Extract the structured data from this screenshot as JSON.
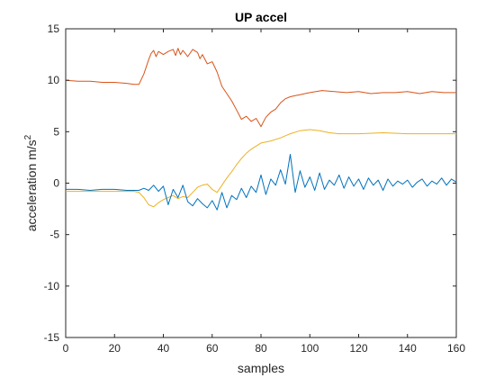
{
  "chart_data": {
    "type": "line",
    "title": "UP accel",
    "xlabel": "samples",
    "ylabel_text": "acceleration m/s",
    "ylabel_sup": "2",
    "xlim": [
      0,
      160
    ],
    "ylim": [
      -15,
      15
    ],
    "xticks": [
      0,
      20,
      40,
      60,
      80,
      100,
      120,
      140,
      160
    ],
    "yticks": [
      -15,
      -10,
      -5,
      0,
      5,
      10,
      15
    ],
    "grid": false,
    "legend": "none",
    "series": [
      {
        "color": "#D95319",
        "x": [
          0,
          5,
          10,
          15,
          20,
          25,
          28,
          30,
          32,
          34,
          35,
          36,
          37,
          38,
          40,
          42,
          44,
          45,
          46,
          47,
          48,
          50,
          52,
          54,
          55,
          56,
          58,
          60,
          62,
          64,
          66,
          68,
          70,
          72,
          74,
          76,
          78,
          80,
          82,
          84,
          86,
          88,
          90,
          92,
          94,
          96,
          98,
          100,
          105,
          110,
          115,
          120,
          125,
          130,
          135,
          140,
          145,
          150,
          155,
          160
        ],
        "y": [
          10,
          9.9,
          9.9,
          9.8,
          9.8,
          9.7,
          9.6,
          9.6,
          10.6,
          12,
          12.6,
          12.9,
          12.3,
          12.8,
          12.5,
          12.8,
          13,
          12.4,
          13.1,
          12.5,
          12.9,
          12.3,
          13,
          12.7,
          12.1,
          12.5,
          11.6,
          11.8,
          10.8,
          9.4,
          8.7,
          8,
          7.1,
          6.2,
          6.5,
          6,
          6.3,
          5.5,
          6.4,
          6.9,
          7.2,
          7.8,
          8.2,
          8.4,
          8.5,
          8.6,
          8.7,
          8.8,
          9,
          8.9,
          8.8,
          8.9,
          8.7,
          8.8,
          8.8,
          8.9,
          8.7,
          8.9,
          8.8,
          8.8
        ]
      },
      {
        "color": "#EDB120",
        "x": [
          0,
          10,
          20,
          28,
          30,
          32,
          34,
          36,
          38,
          40,
          42,
          44,
          46,
          48,
          50,
          52,
          54,
          56,
          58,
          60,
          62,
          64,
          66,
          68,
          70,
          72,
          74,
          76,
          78,
          80,
          84,
          88,
          92,
          96,
          100,
          104,
          108,
          112,
          120,
          130,
          140,
          150,
          160
        ],
        "y": [
          -0.8,
          -0.8,
          -0.8,
          -0.8,
          -0.9,
          -1.4,
          -2.1,
          -2.3,
          -1.9,
          -1.6,
          -1.4,
          -1.2,
          -1.5,
          -1.3,
          -1.4,
          -0.9,
          -0.4,
          -0.2,
          -0.1,
          -0.6,
          -0.9,
          -0.2,
          0.5,
          1.1,
          1.8,
          2.4,
          2.9,
          3.3,
          3.6,
          3.9,
          4.1,
          4.4,
          4.8,
          5.1,
          5.2,
          5.1,
          4.9,
          4.8,
          4.8,
          4.9,
          4.8,
          4.8,
          4.8
        ]
      },
      {
        "color": "#0072BD",
        "x": [
          0,
          5,
          10,
          15,
          20,
          25,
          28,
          30,
          32,
          34,
          36,
          38,
          40,
          42,
          44,
          46,
          48,
          50,
          52,
          54,
          56,
          58,
          60,
          62,
          64,
          66,
          68,
          70,
          72,
          74,
          76,
          78,
          80,
          82,
          84,
          86,
          88,
          90,
          92,
          94,
          96,
          98,
          100,
          102,
          104,
          106,
          108,
          110,
          112,
          114,
          116,
          118,
          120,
          122,
          124,
          126,
          128,
          130,
          132,
          134,
          136,
          138,
          140,
          142,
          144,
          146,
          148,
          150,
          152,
          154,
          156,
          158,
          160
        ],
        "y": [
          -0.6,
          -0.6,
          -0.7,
          -0.6,
          -0.6,
          -0.7,
          -0.7,
          -0.7,
          -0.5,
          -0.7,
          -0.2,
          -0.8,
          -0.3,
          -2.1,
          -0.6,
          -1.4,
          -0.2,
          -1.8,
          -2.2,
          -1.5,
          -2.0,
          -2.4,
          -1.7,
          -2.6,
          -0.9,
          -2.4,
          -1.2,
          -1.6,
          -0.5,
          -1.4,
          -0.3,
          -0.9,
          0.8,
          -1.1,
          0.4,
          -0.2,
          1.3,
          -0.1,
          2.8,
          -0.9,
          1.2,
          -0.4,
          0.6,
          -0.7,
          1.0,
          -0.6,
          0.3,
          -0.2,
          0.8,
          -0.5,
          0.6,
          -0.3,
          0.4,
          -0.6,
          0.5,
          -0.2,
          0.3,
          -0.7,
          0.4,
          -0.3,
          0.2,
          -0.1,
          0.3,
          -0.4,
          0.1,
          0.4,
          -0.3,
          0.2,
          -0.1,
          0.5,
          -0.2,
          0.4,
          0.1
        ]
      }
    ]
  }
}
